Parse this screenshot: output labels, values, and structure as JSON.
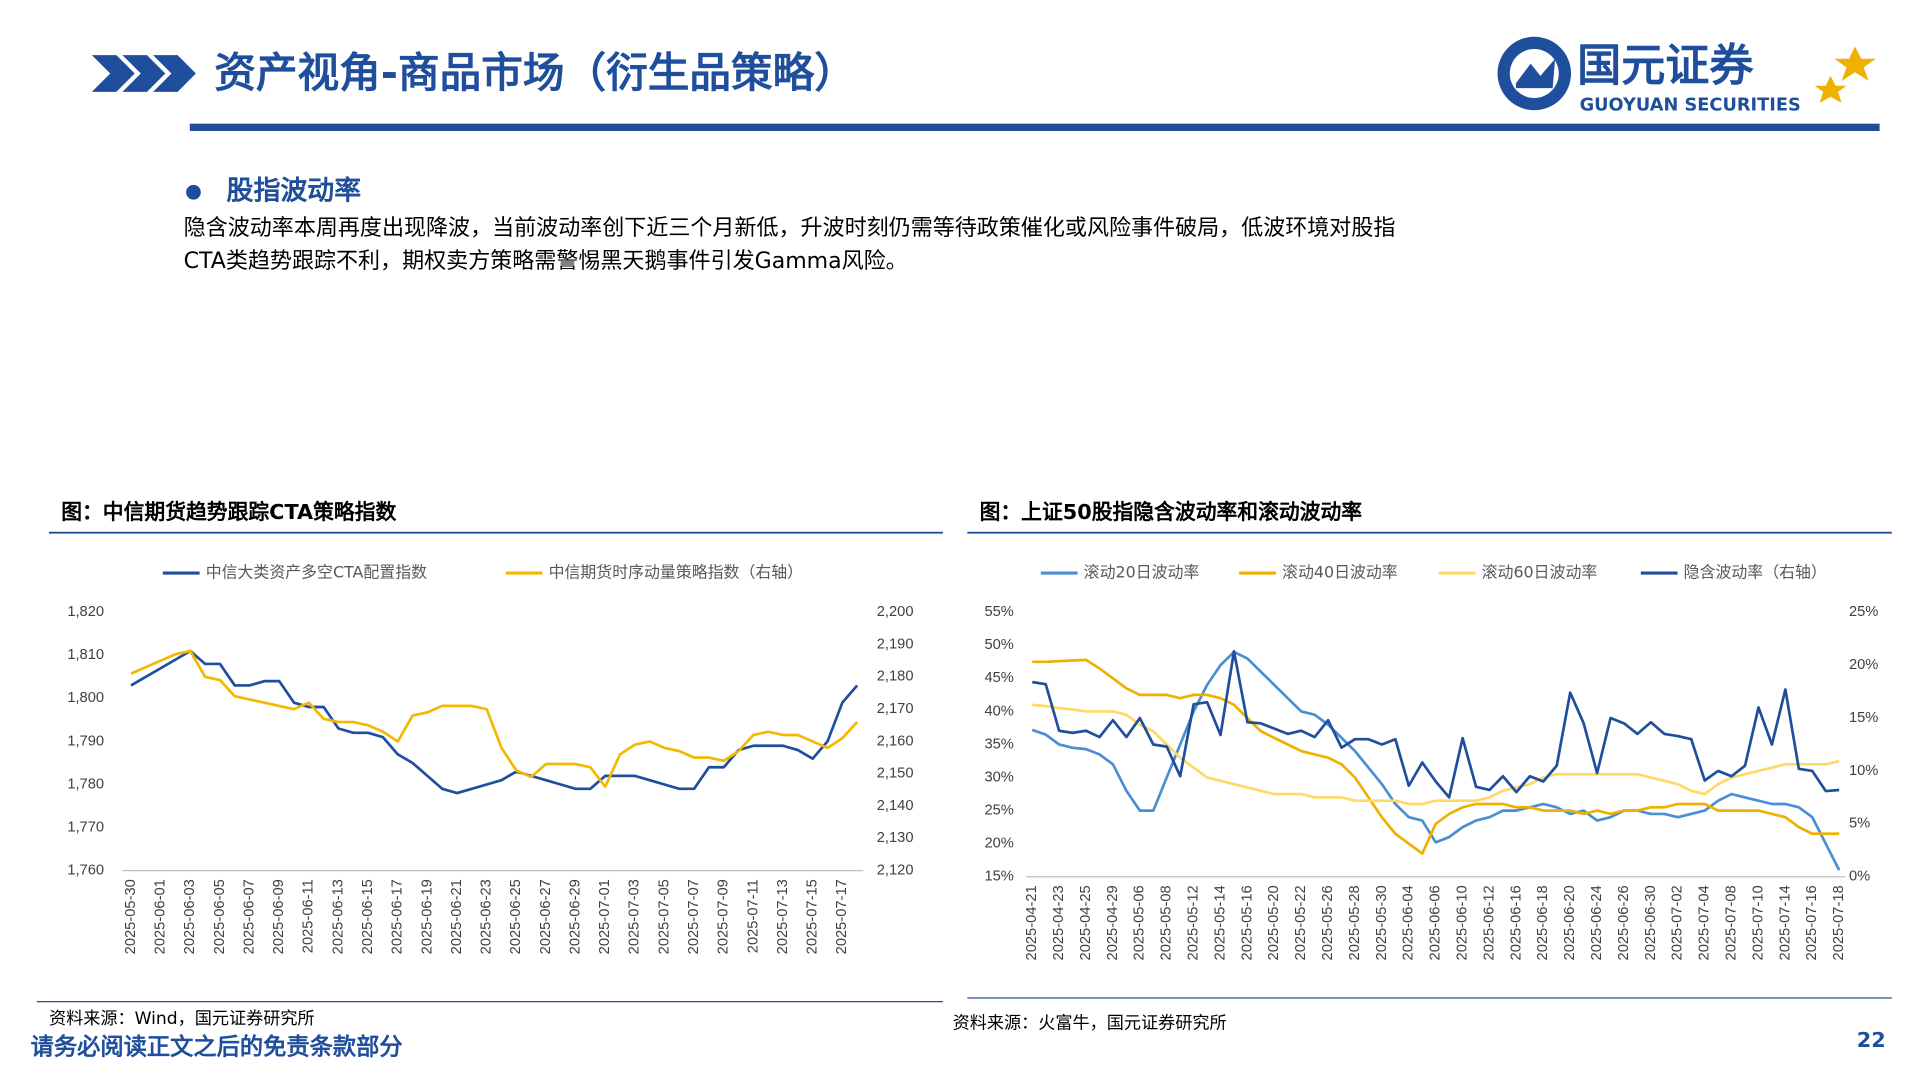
{
  "header": {
    "title": "资产视角-商品市场（衍生品策略）",
    "logo_cn": "国元证券",
    "logo_en": "GUOYUAN SECURITIES"
  },
  "section": {
    "heading": "股指波动率",
    "lines": [
      "隐含波动率本周再度出现降波，当前波动率创下近三个月新低，升波时刻仍需等待政策催化或风险事件破局，低波环境对股指",
      "CTA类趋势跟踪不利，期权卖方策略需警惕黑天鹅事件引发Gamma风险。"
    ]
  },
  "chart_data": [
    {
      "type": "line",
      "title": "图：中信期货趋势跟踪CTA策略指数",
      "source": "资料来源：Wind，国元证券研究所",
      "categories": [
        "2025-05-30",
        null,
        "2025-06-01",
        null,
        "2025-06-03",
        null,
        "2025-06-05",
        null,
        "2025-06-07",
        null,
        "2025-06-09",
        null,
        "2025-06-11",
        null,
        "2025-06-13",
        null,
        "2025-06-15",
        null,
        "2025-06-17",
        null,
        "2025-06-19",
        null,
        "2025-06-21",
        null,
        "2025-06-23",
        null,
        "2025-06-25",
        null,
        "2025-06-27",
        null,
        "2025-06-29",
        null,
        "2025-07-01",
        null,
        "2025-07-03",
        null,
        "2025-07-05",
        null,
        "2025-07-07",
        null,
        "2025-07-09",
        null,
        "2025-07-11",
        null,
        "2025-07-13",
        null,
        "2025-07-15",
        null,
        "2025-07-17",
        null
      ],
      "series": [
        {
          "name": "中信大类资产多空CTA配置指数",
          "color": "#1f4e9c",
          "values": [
            1803,
            1805,
            1807,
            1809,
            1811,
            1808,
            1808,
            1803,
            1803,
            1804,
            1804,
            1799,
            1798,
            1798,
            1793,
            1792,
            1792,
            1791,
            1787,
            1785,
            1782,
            1779,
            1778,
            1779,
            1780,
            1781,
            1783,
            1782,
            1781,
            1780,
            1779,
            1779,
            1782,
            1782,
            1782,
            1781,
            1780,
            1779,
            1779,
            1784,
            1784,
            1788,
            1789,
            1789,
            1789,
            1788,
            1786,
            1790,
            1799,
            1803
          ]
        },
        {
          "name": "中信期货时序动量策略指数（右轴）",
          "color": "#f5b800",
          "axis": "y2",
          "values": [
            2181,
            2183,
            2185,
            2187,
            2188,
            2180,
            2179,
            2174,
            2173,
            2172,
            2171,
            2170,
            2172,
            2167,
            2166,
            2166,
            2165,
            2163,
            2160,
            2168,
            2169,
            2171,
            2171,
            2171,
            2170,
            2158,
            2151,
            2149,
            2153,
            2153,
            2153,
            2152,
            2146,
            2156,
            2159,
            2160,
            2158,
            2157,
            2155,
            2155,
            2154,
            2157,
            2162,
            2163,
            2162,
            2162,
            2160,
            2158,
            2161,
            2166
          ]
        }
      ],
      "ylim": [
        1760,
        1820
      ],
      "yticks": [
        {
          "value": 1760,
          "label": "1,760"
        },
        {
          "value": 1770,
          "label": "1,770"
        },
        {
          "value": 1780,
          "label": "1,780"
        },
        {
          "value": 1790,
          "label": "1,790"
        },
        {
          "value": 1800,
          "label": "1,800"
        },
        {
          "value": 1810,
          "label": "1,810"
        },
        {
          "value": 1820,
          "label": "1,820"
        }
      ],
      "y2lim": [
        2120,
        2200
      ],
      "y2ticks": [
        {
          "value": 2120,
          "label": "2,120"
        },
        {
          "value": 2130,
          "label": "2,130"
        },
        {
          "value": 2140,
          "label": "2,140"
        },
        {
          "value": 2150,
          "label": "2,150"
        },
        {
          "value": 2160,
          "label": "2,160"
        },
        {
          "value": 2170,
          "label": "2,170"
        },
        {
          "value": 2180,
          "label": "2,180"
        },
        {
          "value": 2190,
          "label": "2,190"
        },
        {
          "value": 2200,
          "label": "2,200"
        }
      ]
    },
    {
      "type": "line",
      "title": "图：上证50股指隐含波动率和滚动波动率",
      "source": "资料来源：火富牛，国元证券研究所",
      "categories": [
        "2025-04-21",
        null,
        "2025-04-23",
        null,
        "2025-04-25",
        null,
        "2025-04-29",
        null,
        "2025-05-06",
        null,
        "2025-05-08",
        null,
        "2025-05-12",
        null,
        "2025-05-14",
        null,
        "2025-05-16",
        null,
        "2025-05-20",
        null,
        "2025-05-22",
        null,
        "2025-05-26",
        null,
        "2025-05-28",
        null,
        "2025-05-30",
        null,
        "2025-06-04",
        null,
        "2025-06-06",
        null,
        "2025-06-10",
        null,
        "2025-06-12",
        null,
        "2025-06-16",
        null,
        "2025-06-18",
        null,
        "2025-06-20",
        null,
        "2025-06-24",
        null,
        "2025-06-26",
        null,
        "2025-06-30",
        null,
        "2025-07-02",
        null,
        "2025-07-04",
        null,
        "2025-07-08",
        null,
        "2025-07-10",
        null,
        "2025-07-14",
        null,
        "2025-07-16",
        null,
        "2025-07-18"
      ],
      "series": [
        {
          "name": "滚动20日波动率",
          "color": "#4a8fd4",
          "values": [
            37.2,
            36.5,
            35,
            34.5,
            34.3,
            33.5,
            32,
            28,
            25,
            25,
            30,
            35,
            40,
            44,
            47,
            49,
            48,
            46,
            44,
            42,
            40,
            39.5,
            38,
            36,
            34,
            31.5,
            29,
            26,
            24,
            23.5,
            20.2,
            21,
            22.5,
            23.5,
            24,
            25,
            25,
            25.5,
            26,
            25.5,
            24.5,
            25,
            23.5,
            24,
            25,
            25,
            24.5,
            24.5,
            24,
            24.5,
            25,
            26.5,
            27.5,
            27,
            26.5,
            26,
            26,
            25.5,
            24,
            20,
            16
          ]
        },
        {
          "name": "滚动40日波动率",
          "color": "#f0b000",
          "values": [
            47.5,
            47.5,
            47.6,
            47.7,
            47.8,
            46.5,
            45,
            43.5,
            42.5,
            42.5,
            42.5,
            42,
            42.5,
            42.5,
            42,
            41,
            39,
            37,
            36,
            35,
            34,
            33.5,
            33,
            32,
            30,
            27,
            24,
            21.5,
            20,
            18.5,
            23,
            24.5,
            25.5,
            26,
            26,
            26,
            25.5,
            25.5,
            25,
            25,
            25,
            24.5,
            25,
            24.5,
            25,
            25,
            25.5,
            25.5,
            26,
            26,
            26,
            25,
            25,
            25,
            25,
            24.5,
            24,
            22.5,
            21.5,
            21.5,
            21.5
          ]
        },
        {
          "name": "滚动60日波动率",
          "color": "#ffd966",
          "values": [
            41,
            40.8,
            40.5,
            40.3,
            40,
            40,
            40,
            39.5,
            38,
            37,
            35,
            33,
            31.5,
            30,
            29.5,
            29,
            28.5,
            28,
            27.5,
            27.5,
            27.5,
            27,
            27,
            27,
            26.5,
            26.5,
            26.5,
            26.5,
            26,
            26,
            26.5,
            26.5,
            26.5,
            26.5,
            27,
            28,
            28.5,
            29,
            30,
            30.5,
            30.5,
            30.5,
            30.5,
            30.5,
            30.5,
            30.5,
            30,
            29.5,
            29,
            28,
            27.5,
            29,
            30,
            30.5,
            31,
            31.5,
            32,
            32,
            32,
            32,
            32.5
          ]
        },
        {
          "name": "隐含波动率（右轴）",
          "color": "#1f4e9c",
          "axis": "y2",
          "values": [
            18.4,
            18.2,
            13.8,
            13.6,
            13.8,
            13.2,
            14.8,
            13.2,
            15,
            12.5,
            12.3,
            9.5,
            16.3,
            16.5,
            13.4,
            21.3,
            14.6,
            14.5,
            14,
            13.5,
            13.8,
            13.2,
            14.8,
            12.2,
            13,
            13,
            12.5,
            13,
            8.6,
            10.8,
            9,
            7.5,
            13.1,
            8.5,
            8.2,
            9.5,
            8,
            9.5,
            9,
            10.5,
            17.4,
            14.5,
            9.8,
            15,
            14.5,
            13.5,
            14.6,
            13.5,
            13.3,
            13,
            9.1,
            10,
            9.5,
            10.5,
            16,
            12.5,
            17.7,
            10.2,
            10,
            8.1,
            8.2
          ]
        }
      ],
      "ylim": [
        15,
        55
      ],
      "yticks": [
        {
          "value": 15,
          "label": "15%"
        },
        {
          "value": 20,
          "label": "20%"
        },
        {
          "value": 25,
          "label": "25%"
        },
        {
          "value": 30,
          "label": "30%"
        },
        {
          "value": 35,
          "label": "35%"
        },
        {
          "value": 40,
          "label": "40%"
        },
        {
          "value": 45,
          "label": "45%"
        },
        {
          "value": 50,
          "label": "50%"
        },
        {
          "value": 55,
          "label": "55%"
        }
      ],
      "y2lim": [
        0,
        25
      ],
      "y2ticks": [
        {
          "value": 0,
          "label": "0%"
        },
        {
          "value": 5,
          "label": "5%"
        },
        {
          "value": 10,
          "label": "10%"
        },
        {
          "value": 15,
          "label": "15%"
        },
        {
          "value": 20,
          "label": "20%"
        },
        {
          "value": 25,
          "label": "25%"
        }
      ]
    }
  ],
  "footer": {
    "disclaimer": "请务必阅读正文之后的免责条款部分",
    "page": "22"
  }
}
